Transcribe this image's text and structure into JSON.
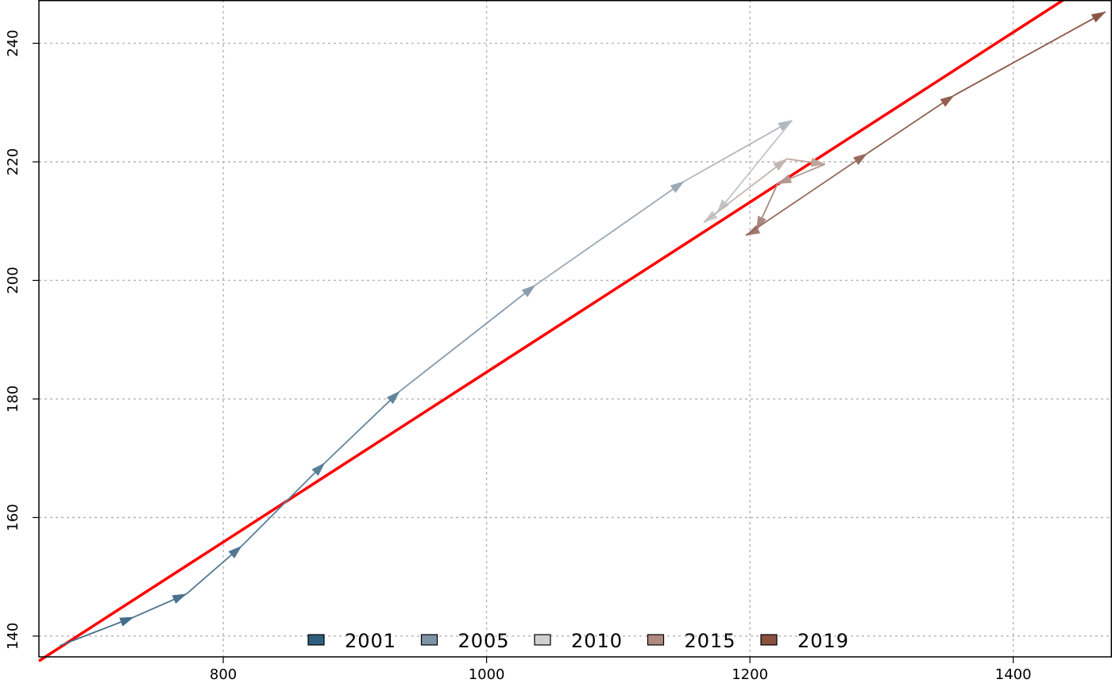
{
  "chart_data": {
    "type": "line",
    "title": "",
    "xlabel": "",
    "ylabel": "",
    "xlim": [
      660,
      1475
    ],
    "ylim": [
      136.5,
      247.3
    ],
    "x_ticks": [
      800,
      1000,
      1200,
      1400
    ],
    "y_ticks": [
      140,
      160,
      180,
      200,
      220,
      240
    ],
    "x_tick_labels": [
      "800",
      "1000",
      "1200",
      "1400"
    ],
    "y_tick_labels": [
      "140",
      "160",
      "180",
      "200",
      "220",
      "240"
    ],
    "grid": true,
    "legend_position": "bottom-center",
    "legend": [
      {
        "label": "2001",
        "color": "#2f5f7f"
      },
      {
        "label": "2005",
        "color": "#7f93a8"
      },
      {
        "label": "2010",
        "color": "#d0d0d0"
      },
      {
        "label": "2015",
        "color": "#b08a80"
      },
      {
        "label": "2019",
        "color": "#8a5040"
      }
    ],
    "path": [
      {
        "x": 676,
        "y": 138.4,
        "color": "#3c6888"
      },
      {
        "x": 732,
        "y": 143.2,
        "color": "#436d8b"
      },
      {
        "x": 772,
        "y": 147.1,
        "color": "#4a728f"
      },
      {
        "x": 814,
        "y": 155.2,
        "color": "#527893"
      },
      {
        "x": 877,
        "y": 169.2,
        "color": "#5a7e97"
      },
      {
        "x": 934,
        "y": 181.3,
        "color": "#63859c"
      },
      {
        "x": 1037,
        "y": 199.2,
        "color": "#8a9cae"
      },
      {
        "x": 1150,
        "y": 216.7,
        "color": "#9ca9b7"
      },
      {
        "x": 1232,
        "y": 227.0,
        "color": "#b2b8bf"
      },
      {
        "x": 1175,
        "y": 211.4,
        "color": "#c2c5c8"
      },
      {
        "x": 1165,
        "y": 209.8,
        "color": "#c9c9c9"
      },
      {
        "x": 1228,
        "y": 220.5,
        "color": "#c4b6b0"
      },
      {
        "x": 1257,
        "y": 219.6,
        "color": "#bca69e"
      },
      {
        "x": 1221,
        "y": 216.3,
        "color": "#b49890"
      },
      {
        "x": 1205,
        "y": 208.5,
        "color": "#aa8a80"
      },
      {
        "x": 1197,
        "y": 207.6,
        "color": "#a07a6e"
      },
      {
        "x": 1289,
        "y": 221.4,
        "color": "#976a5c"
      },
      {
        "x": 1355,
        "y": 231.2,
        "color": "#915f50"
      },
      {
        "x": 1470,
        "y": 245.3,
        "color": "#8c5646"
      }
    ],
    "trend_line": {
      "color": "#ff0000",
      "points": [
        {
          "x": 660,
          "y": 135.8
        },
        {
          "x": 1438,
          "y": 247.3
        }
      ]
    }
  }
}
